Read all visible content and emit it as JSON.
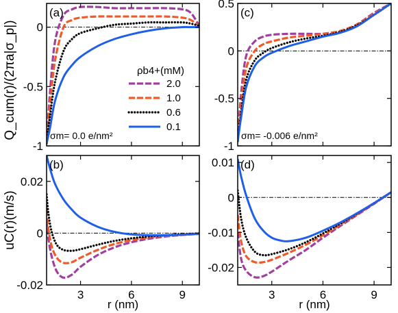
{
  "chart_data": [
    {
      "panel_label": "(a)",
      "type": "line",
      "ylabel": "Q_cum(r)/(2πa|σ_p|)",
      "xlim": [
        1.0,
        10.0
      ],
      "ylim": [
        -1.0,
        0.2
      ],
      "xticks": [
        3,
        6,
        9
      ],
      "yticks": [
        0,
        -0.5,
        -1
      ],
      "ytick_labels": [
        "0",
        "-0.5",
        "-1"
      ],
      "annotation": "σm= 0.0 e/nm²",
      "legend_title": "ρb4+(mM)",
      "legend_placement": "right-middle",
      "reference_line_y": 0,
      "series": [
        {
          "name": "2.0",
          "color": "#a03fa0",
          "style": "dashed",
          "x": [
            1.0,
            1.2,
            1.5,
            2.0,
            2.5,
            3.0,
            4.0,
            5.0,
            6.0,
            7.0,
            8.0,
            9.0,
            9.5,
            10.0
          ],
          "y": [
            -0.98,
            -0.55,
            -0.12,
            0.1,
            0.15,
            0.17,
            0.17,
            0.16,
            0.16,
            0.16,
            0.16,
            0.15,
            0.12,
            0.01
          ]
        },
        {
          "name": "1.0",
          "color": "#f05a28",
          "style": "dashed",
          "x": [
            1.0,
            1.2,
            1.5,
            2.0,
            2.5,
            3.0,
            4.0,
            5.0,
            6.0,
            7.0,
            8.0,
            9.0,
            9.5,
            10.0
          ],
          "y": [
            -0.98,
            -0.65,
            -0.28,
            0.0,
            0.06,
            0.08,
            0.09,
            0.09,
            0.09,
            0.09,
            0.09,
            0.08,
            0.06,
            0.01
          ]
        },
        {
          "name": "0.6",
          "color": "#000000",
          "style": "dotted",
          "x": [
            1.0,
            1.2,
            1.5,
            2.0,
            2.5,
            3.0,
            4.0,
            5.0,
            6.0,
            7.0,
            8.0,
            9.0,
            9.5,
            10.0
          ],
          "y": [
            -0.98,
            -0.75,
            -0.46,
            -0.2,
            -0.1,
            -0.05,
            -0.01,
            0.02,
            0.03,
            0.04,
            0.04,
            0.04,
            0.03,
            0.01
          ]
        },
        {
          "name": "0.1",
          "color": "#1f5fe8",
          "style": "solid",
          "x": [
            1.0,
            1.2,
            1.5,
            2.0,
            2.5,
            3.0,
            4.0,
            5.0,
            6.0,
            7.0,
            8.0,
            9.0,
            9.5,
            10.0
          ],
          "y": [
            -0.98,
            -0.85,
            -0.62,
            -0.42,
            -0.32,
            -0.25,
            -0.16,
            -0.1,
            -0.06,
            -0.03,
            -0.01,
            0.0,
            0.0,
            0.0
          ]
        }
      ]
    },
    {
      "panel_label": "(c)",
      "type": "line",
      "xlim": [
        1.0,
        10.0
      ],
      "ylim": [
        -1.0,
        0.5
      ],
      "xticks": [
        3,
        6,
        9
      ],
      "yticks": [
        0.5,
        0,
        -0.5,
        -1
      ],
      "ytick_labels": [
        "0.5",
        "0",
        "-0.5",
        "-1"
      ],
      "annotation": "σm= -0.006 e/nm²",
      "reference_line_y": 0,
      "series": [
        {
          "name": "2.0",
          "color": "#a03fa0",
          "style": "dashed",
          "x": [
            1.0,
            1.2,
            1.5,
            2.0,
            2.5,
            3.0,
            4.0,
            5.0,
            6.0,
            7.0,
            8.0,
            9.0,
            10.0
          ],
          "y": [
            -0.95,
            -0.45,
            -0.05,
            0.1,
            0.15,
            0.17,
            0.18,
            0.18,
            0.18,
            0.2,
            0.28,
            0.4,
            0.5
          ]
        },
        {
          "name": "1.0",
          "color": "#f05a28",
          "style": "dashed",
          "x": [
            1.0,
            1.2,
            1.5,
            2.0,
            2.5,
            3.0,
            4.0,
            5.0,
            6.0,
            7.0,
            8.0,
            9.0,
            10.0
          ],
          "y": [
            -0.95,
            -0.55,
            -0.18,
            0.0,
            0.07,
            0.1,
            0.14,
            0.16,
            0.18,
            0.21,
            0.28,
            0.39,
            0.5
          ]
        },
        {
          "name": "0.6",
          "color": "#000000",
          "style": "dotted",
          "x": [
            1.0,
            1.2,
            1.5,
            2.0,
            2.5,
            3.0,
            4.0,
            5.0,
            6.0,
            7.0,
            8.0,
            9.0,
            10.0
          ],
          "y": [
            -0.95,
            -0.65,
            -0.3,
            -0.1,
            -0.02,
            0.03,
            0.09,
            0.13,
            0.16,
            0.2,
            0.27,
            0.38,
            0.5
          ]
        },
        {
          "name": "0.1",
          "color": "#1f5fe8",
          "style": "solid",
          "x": [
            1.0,
            1.2,
            1.5,
            2.0,
            2.5,
            3.0,
            4.0,
            5.0,
            6.0,
            7.0,
            8.0,
            9.0,
            10.0
          ],
          "y": [
            -0.95,
            -0.7,
            -0.38,
            -0.16,
            -0.07,
            -0.02,
            0.05,
            0.1,
            0.15,
            0.19,
            0.26,
            0.38,
            0.5
          ]
        }
      ]
    },
    {
      "panel_label": "(b)",
      "type": "line",
      "ylabel": "uC(r)(m/s)",
      "xlabel": "r (nm)",
      "xlim": [
        1.0,
        10.0
      ],
      "ylim": [
        -0.02,
        0.03
      ],
      "xticks": [
        3,
        6,
        9
      ],
      "xtick_labels": [
        "3",
        "6",
        "9"
      ],
      "yticks": [
        0.02,
        0,
        -0.02
      ],
      "ytick_labels": [
        "0.02",
        "0",
        "-0.02"
      ],
      "reference_line_y": 0,
      "series": [
        {
          "name": "2.0",
          "color": "#a03fa0",
          "style": "dashed",
          "x": [
            1.0,
            1.1,
            1.3,
            1.6,
            2.0,
            2.5,
            3.0,
            4.0,
            5.0,
            6.0,
            7.0,
            8.0,
            9.0,
            10.0
          ],
          "y": [
            0.005,
            -0.002,
            -0.009,
            -0.0148,
            -0.0172,
            -0.016,
            -0.013,
            -0.0085,
            -0.0055,
            -0.0035,
            -0.0022,
            -0.0013,
            -0.0007,
            -0.0003
          ]
        },
        {
          "name": "1.0",
          "color": "#f05a28",
          "style": "dashed",
          "x": [
            1.0,
            1.1,
            1.3,
            1.6,
            2.0,
            2.5,
            3.0,
            4.0,
            5.0,
            6.0,
            7.0,
            8.0,
            9.0,
            10.0
          ],
          "y": [
            0.009,
            0.002,
            -0.005,
            -0.0095,
            -0.0115,
            -0.0112,
            -0.0095,
            -0.0065,
            -0.0042,
            -0.0027,
            -0.0017,
            -0.001,
            -0.0006,
            -0.0002
          ]
        },
        {
          "name": "0.6",
          "color": "#000000",
          "style": "dotted",
          "x": [
            1.0,
            1.1,
            1.3,
            1.6,
            2.0,
            2.5,
            3.0,
            4.0,
            5.0,
            6.0,
            7.0,
            8.0,
            9.0,
            10.0
          ],
          "y": [
            0.015,
            0.008,
            0.0005,
            -0.0045,
            -0.0065,
            -0.0068,
            -0.0062,
            -0.0045,
            -0.003,
            -0.002,
            -0.0013,
            -0.0008,
            -0.0004,
            -0.0001
          ]
        },
        {
          "name": "0.1",
          "color": "#1f5fe8",
          "style": "solid",
          "x": [
            1.0,
            1.2,
            1.5,
            2.0,
            2.5,
            3.0,
            4.0,
            5.0,
            6.0,
            7.0,
            8.0,
            9.0,
            10.0
          ],
          "y": [
            0.03,
            0.025,
            0.019,
            0.013,
            0.009,
            0.006,
            0.0025,
            0.0005,
            -0.0005,
            -0.0008,
            -0.0008,
            -0.0006,
            -0.0003
          ]
        }
      ]
    },
    {
      "panel_label": "(d)",
      "type": "line",
      "xlabel": "r (nm)",
      "xlim": [
        1.0,
        10.0
      ],
      "ylim": [
        -0.025,
        0.012
      ],
      "xticks": [
        3,
        6,
        9
      ],
      "xtick_labels": [
        "3",
        "6",
        "9"
      ],
      "yticks": [
        0.01,
        0,
        -0.01,
        -0.02
      ],
      "ytick_labels": [
        "0.01",
        "0",
        "-0.01",
        "-0.02"
      ],
      "reference_line_y": 0,
      "series": [
        {
          "name": "2.0",
          "color": "#a03fa0",
          "style": "dashed",
          "x": [
            1.0,
            1.2,
            1.5,
            2.0,
            2.5,
            3.0,
            4.0,
            5.0,
            6.0,
            7.0,
            8.0,
            9.0,
            10.0
          ],
          "y": [
            -0.01,
            -0.0175,
            -0.021,
            -0.0228,
            -0.0225,
            -0.0212,
            -0.018,
            -0.015,
            -0.0115,
            -0.0082,
            -0.005,
            -0.0018,
            0.0015
          ]
        },
        {
          "name": "1.0",
          "color": "#f05a28",
          "style": "dashed",
          "x": [
            1.0,
            1.2,
            1.5,
            2.0,
            2.5,
            3.0,
            4.0,
            5.0,
            6.0,
            7.0,
            8.0,
            9.0,
            10.0
          ],
          "y": [
            -0.005,
            -0.0125,
            -0.0168,
            -0.0185,
            -0.0185,
            -0.0178,
            -0.0158,
            -0.0135,
            -0.0108,
            -0.0078,
            -0.0048,
            -0.0017,
            0.0015
          ]
        },
        {
          "name": "0.6",
          "color": "#000000",
          "style": "dotted",
          "x": [
            1.0,
            1.2,
            1.5,
            2.0,
            2.5,
            3.0,
            4.0,
            5.0,
            6.0,
            7.0,
            8.0,
            9.0,
            10.0
          ],
          "y": [
            0.002,
            -0.006,
            -0.0115,
            -0.0155,
            -0.0165,
            -0.0162,
            -0.0148,
            -0.0128,
            -0.0103,
            -0.0075,
            -0.0046,
            -0.0016,
            0.0015
          ]
        },
        {
          "name": "0.1",
          "color": "#1f5fe8",
          "style": "solid",
          "x": [
            1.0,
            1.2,
            1.5,
            2.0,
            2.5,
            3.0,
            3.5,
            4.0,
            5.0,
            6.0,
            7.0,
            8.0,
            9.0,
            10.0
          ],
          "y": [
            0.011,
            0.006,
            0.0005,
            -0.006,
            -0.0095,
            -0.0115,
            -0.0123,
            -0.0125,
            -0.0115,
            -0.0095,
            -0.0072,
            -0.0045,
            -0.0016,
            0.0015
          ]
        }
      ]
    }
  ]
}
